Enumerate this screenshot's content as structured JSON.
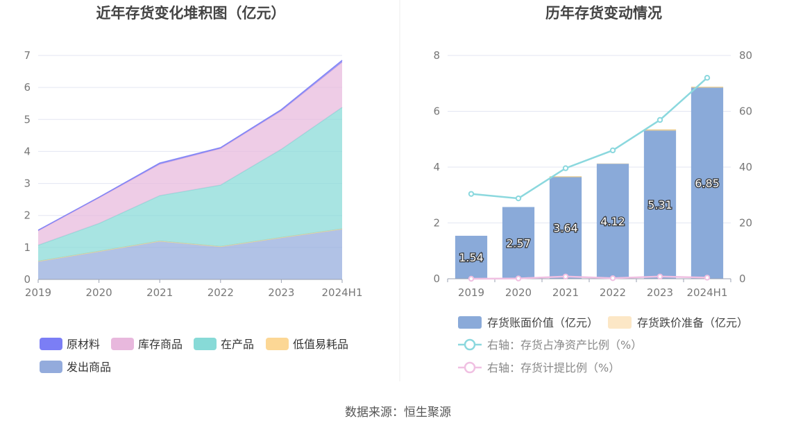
{
  "left_chart": {
    "title": "近年存货变化堆积图（亿元）",
    "legend": [
      {
        "name": "原材料",
        "color": "#7b7ef5"
      },
      {
        "name": "库存商品",
        "color": "#e8b8dd"
      },
      {
        "name": "在产品",
        "color": "#87dad7"
      },
      {
        "name": "低值易耗品",
        "color": "#fcd795"
      },
      {
        "name": "发出商品",
        "color": "#93abdc"
      }
    ]
  },
  "right_chart": {
    "title": "历年存货变动情况",
    "legend": [
      {
        "name": "存货账面价值（亿元）",
        "color": "#8aaad9",
        "kind": "bar"
      },
      {
        "name": "存货跌价准备（亿元）",
        "color": "#fce7c6",
        "kind": "bar"
      },
      {
        "name": "右轴：存货占净资产比例（%）",
        "color": "#8bd8de",
        "kind": "line"
      },
      {
        "name": "右轴：存货计提比例（%）",
        "color": "#f0c0e2",
        "kind": "line"
      }
    ]
  },
  "source": "数据来源：恒生聚源",
  "chart_data": [
    {
      "type": "area",
      "stacked": true,
      "title": "近年存货变化堆积图（亿元）",
      "categories": [
        "2019",
        "2020",
        "2021",
        "2022",
        "2023",
        "2024H1"
      ],
      "ylim": [
        0,
        7
      ],
      "yticks": [
        0,
        1,
        2,
        3,
        4,
        5,
        6,
        7
      ],
      "grid": true,
      "legend_position": "bottom",
      "series": [
        {
          "name": "发出商品",
          "color": "#93abdc",
          "values": [
            0.57,
            0.88,
            1.2,
            1.03,
            1.31,
            1.58
          ]
        },
        {
          "name": "低值易耗品",
          "color": "#fcd795",
          "values": [
            0,
            0,
            0,
            0,
            0,
            0
          ]
        },
        {
          "name": "在产品",
          "color": "#87dad7",
          "values": [
            0.5,
            0.87,
            1.42,
            1.92,
            2.76,
            3.8
          ]
        },
        {
          "name": "库存商品",
          "color": "#e8b8dd",
          "values": [
            0.45,
            0.8,
            0.98,
            1.14,
            1.2,
            1.41
          ]
        },
        {
          "name": "原材料",
          "color": "#7b7ef5",
          "values": [
            0.02,
            0.02,
            0.04,
            0.03,
            0.04,
            0.06
          ]
        }
      ]
    },
    {
      "type": "bar",
      "title": "历年存货变动情况",
      "categories": [
        "2019",
        "2020",
        "2021",
        "2022",
        "2023",
        "2024H1"
      ],
      "ylim": [
        0,
        8
      ],
      "yticks": [
        0,
        2,
        4,
        6,
        8
      ],
      "y2lim": [
        0,
        80
      ],
      "y2ticks": [
        0,
        20,
        40,
        60,
        80
      ],
      "grid": true,
      "legend_position": "bottom",
      "series": [
        {
          "name": "存货账面价值（亿元）",
          "type": "bar",
          "axis": "left",
          "color": "#8aaad9",
          "values": [
            1.54,
            2.57,
            3.64,
            4.12,
            5.31,
            6.85
          ]
        },
        {
          "name": "存货跌价准备（亿元）",
          "type": "bar",
          "axis": "left",
          "color": "#fce7c6",
          "values": [
            0.0,
            0.0,
            0.03,
            0.01,
            0.04,
            0.03
          ]
        },
        {
          "name": "右轴：存货占净资产比例（%）",
          "type": "line",
          "axis": "right",
          "color": "#8bd8de",
          "values": [
            30.4,
            28.8,
            39.6,
            46.0,
            56.9,
            72.0
          ]
        },
        {
          "name": "右轴：存货计提比例（%）",
          "type": "line",
          "axis": "right",
          "color": "#f0c0e2",
          "values": [
            0.0,
            0.1,
            0.8,
            0.2,
            0.8,
            0.4
          ]
        }
      ],
      "data_labels": [
        "1.54",
        "2.57",
        "3.64",
        "4.12",
        "5.31",
        "6.85"
      ]
    }
  ]
}
